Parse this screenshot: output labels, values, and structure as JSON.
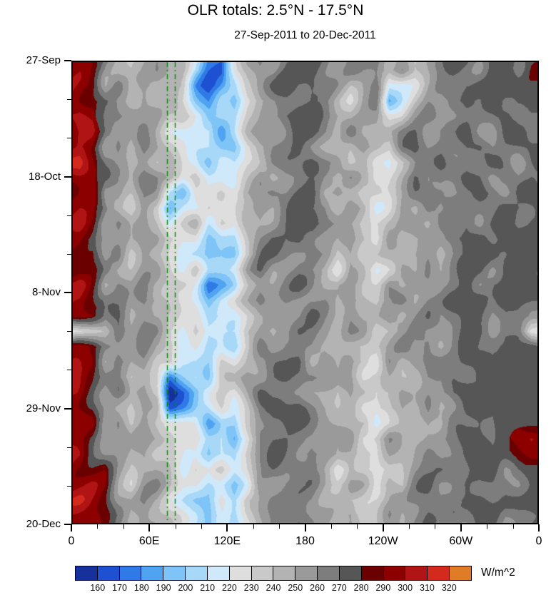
{
  "page": {
    "title": "OLR totals: 2.5°N - 17.5°N",
    "subtitle": "27-Sep-2011 to 20-Dec-2011"
  },
  "axes": {
    "y": {
      "labels": [
        "27-Sep",
        "18-Oct",
        "8-Nov",
        "29-Nov",
        "20-Dec"
      ],
      "fractions": [
        0,
        0.25,
        0.5,
        0.75,
        1
      ],
      "minor_count_between": 2
    },
    "x": {
      "labels": [
        "0",
        "60E",
        "120E",
        "180",
        "120W",
        "60W",
        "0"
      ],
      "fractions": [
        0,
        0.16667,
        0.33333,
        0.5,
        0.66667,
        0.83333,
        1
      ],
      "minor_count_between": 2
    }
  },
  "colorbar": {
    "unit": "W/m^2",
    "tick_labels": [
      "160",
      "170",
      "180",
      "190",
      "200",
      "210",
      "220",
      "230",
      "240",
      "250",
      "260",
      "270",
      "280",
      "290",
      "300",
      "310",
      "320"
    ],
    "colors": [
      "#16309c",
      "#1e50d2",
      "#2f7ae6",
      "#4fa3f0",
      "#7fc4f6",
      "#a8d8f8",
      "#cfe9fa",
      "#dedede",
      "#c9c9c9",
      "#b3b3b3",
      "#9a9a9a",
      "#7d7d7d",
      "#565656",
      "#6b0000",
      "#8c0000",
      "#b01414",
      "#d42a1e",
      "#e07b28"
    ]
  },
  "chart_data": {
    "type": "heatmap",
    "title": "OLR totals: 2.5°N - 17.5°N",
    "subtitle": "27-Sep-2011 to 20-Dec-2011",
    "units": "W/m^2",
    "x_axis": {
      "kind": "longitude",
      "range_deg": [
        0,
        360
      ],
      "tick_labels": [
        "0",
        "60E",
        "120E",
        "180",
        "120W",
        "60W",
        "0"
      ]
    },
    "y_axis": {
      "kind": "time",
      "start": "27-Sep-2011",
      "end": "20-Dec-2011",
      "tick_labels": [
        "27-Sep",
        "18-Oct",
        "8-Nov",
        "29-Nov",
        "20-Dec"
      ]
    },
    "levels": {
      "min": 160,
      "max": 320,
      "step": 10
    },
    "palette": [
      "#16309c",
      "#1e50d2",
      "#2f7ae6",
      "#4fa3f0",
      "#7fc4f6",
      "#a8d8f8",
      "#cfe9fa",
      "#dedede",
      "#c9c9c9",
      "#b3b3b3",
      "#9a9a9a",
      "#7d7d7d",
      "#565656",
      "#6b0000",
      "#8c0000",
      "#b01414",
      "#d42a1e",
      "#e07b28"
    ],
    "grid": {
      "encoding": "Each character is a fill-level index 0-17 via alphabet '0123456789abcdefgh'. Level i spans OLR [150+10*i, 160+10*i) W/m^2 (0 = <160, 17 = >320). Rows run top to bottom in time (27-Sep-2011 to 20-Dec-2011); 36 columns run left to right in longitude 0 to 360E. Persistent high-OLR (dark red) band near 0-20E, convective low-OLR (blue) patches mainly 70-140E.",
      "rows": [
        "edba9ab9852169babccbabbcab9abccbccbd",
        "eeab9ba9831248abcbcba9bc678abbccbccc",
        "edbaab997424379abbba98ab479a9bcbcbcc",
        "fdabbaa8864558abccbba99a88abaabcccbc",
        "eeba9a97656469bbbccb9a899ababbcbbccc",
        "edab8a98766558abbcba98a97ababbccbccc",
        "fdba9a88775669abbbcba89768aabbcbccbc",
        "edba9ba9786779babbba9a8679babbccbcbc",
        "eeab9a9547688aabbccab97889aabbbccbcc",
        "edba8a83568779babcbb9a978a9babccbccc",
        "fdab9a96796869aabbcba9889ababbcbccbc",
        "edba9aa8774558abbcba9a97a9abbcccbccc",
        "eeab8a98753447abbbba8a889aababbccbcc",
        "edba9aa8674569babba97a868a9babccbcbc",
        "fdab9a99862458aabcba9988a8abbbcbcccc",
        "edba9ba9764679babbba8a979babbcbcbccc",
        "edab9a98775668abbbca9a88a9ababccbccb",
        "778b9aa8786779aabcba9a9789aabbccbcb7",
        "edba9a99775768babbba98889a9babcbccbc",
        "eeab9a88665879abbcab9a97a8abbbccbccc",
        "edba8a9246588aabbbba9a8899ababbccbcc",
        "fdab9a80246879babba98a978aabbccbccbc",
        "edba9a91355768abbcba9a889a9babccbccc",
        "eeab8a98763547abbbba989789ababbcbccc",
        "edba9aa9775636abbbba9a88a9abbbccbcde",
        "fdba9a88774558abbbca9a9799ababccbcdd",
        "edda9a98686768abbcb97a8689aabbbccbcc",
        "eeda8aa8775657babbba9a97a8ababcbccbc",
        "feda9a97655869abbbba988899abbbccbccc",
        "eedb9a98764658abbcba9a88a9ababbccbcc"
      ]
    },
    "overlay_lines": {
      "description": "green dash-dot meridian marker lines",
      "color": "#008a00",
      "longitudes_deg_east": [
        73,
        79
      ]
    }
  }
}
